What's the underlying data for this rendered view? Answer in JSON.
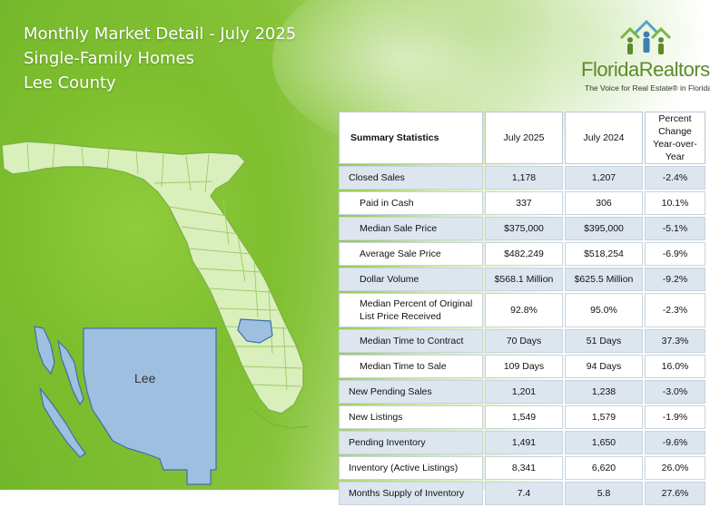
{
  "header": {
    "title": "Monthly Market Detail - July 2025",
    "property_type": "Single-Family Homes",
    "area": "Lee County"
  },
  "logo": {
    "name": "FloridaRealtors",
    "registered": "®",
    "tagline": "The Voice for Real Estate® in Florida"
  },
  "map": {
    "county_label": "Lee"
  },
  "colors": {
    "brand_green": "#8cc63f",
    "county_blue": "#9fbfe0",
    "row_shade": "#dde6ef"
  },
  "table": {
    "headers": {
      "stat": "Summary Statistics",
      "current": "July 2025",
      "previous": "July 2024",
      "change_line1": "Percent Change",
      "change_line2": "Year-over-Year"
    },
    "rows": [
      {
        "label": "Closed Sales",
        "current": "1,178",
        "previous": "1,207",
        "change": "-2.4%"
      },
      {
        "label": "Paid in Cash",
        "current": "337",
        "previous": "306",
        "change": "10.1%"
      },
      {
        "label": "Median Sale Price",
        "current": "$375,000",
        "previous": "$395,000",
        "change": "-5.1%"
      },
      {
        "label": "Average Sale Price",
        "current": "$482,249",
        "previous": "$518,254",
        "change": "-6.9%"
      },
      {
        "label": "Dollar Volume",
        "current": "$568.1 Million",
        "previous": "$625.5 Million",
        "change": "-9.2%"
      },
      {
        "label": "Median Percent of Original List Price Received",
        "current": "92.8%",
        "previous": "95.0%",
        "change": "-2.3%"
      },
      {
        "label": "Median Time to Contract",
        "current": "70 Days",
        "previous": "51 Days",
        "change": "37.3%"
      },
      {
        "label": "Median Time to Sale",
        "current": "109 Days",
        "previous": "94 Days",
        "change": "16.0%"
      },
      {
        "label": "New Pending Sales",
        "current": "1,201",
        "previous": "1,238",
        "change": "-3.0%"
      },
      {
        "label": "New Listings",
        "current": "1,549",
        "previous": "1,579",
        "change": "-1.9%"
      },
      {
        "label": "Pending Inventory",
        "current": "1,491",
        "previous": "1,650",
        "change": "-9.6%"
      },
      {
        "label": "Inventory (Active Listings)",
        "current": "8,341",
        "previous": "6,620",
        "change": "26.0%"
      },
      {
        "label": "Months Supply of Inventory",
        "current": "7.4",
        "previous": "5.8",
        "change": "27.6%"
      }
    ]
  }
}
